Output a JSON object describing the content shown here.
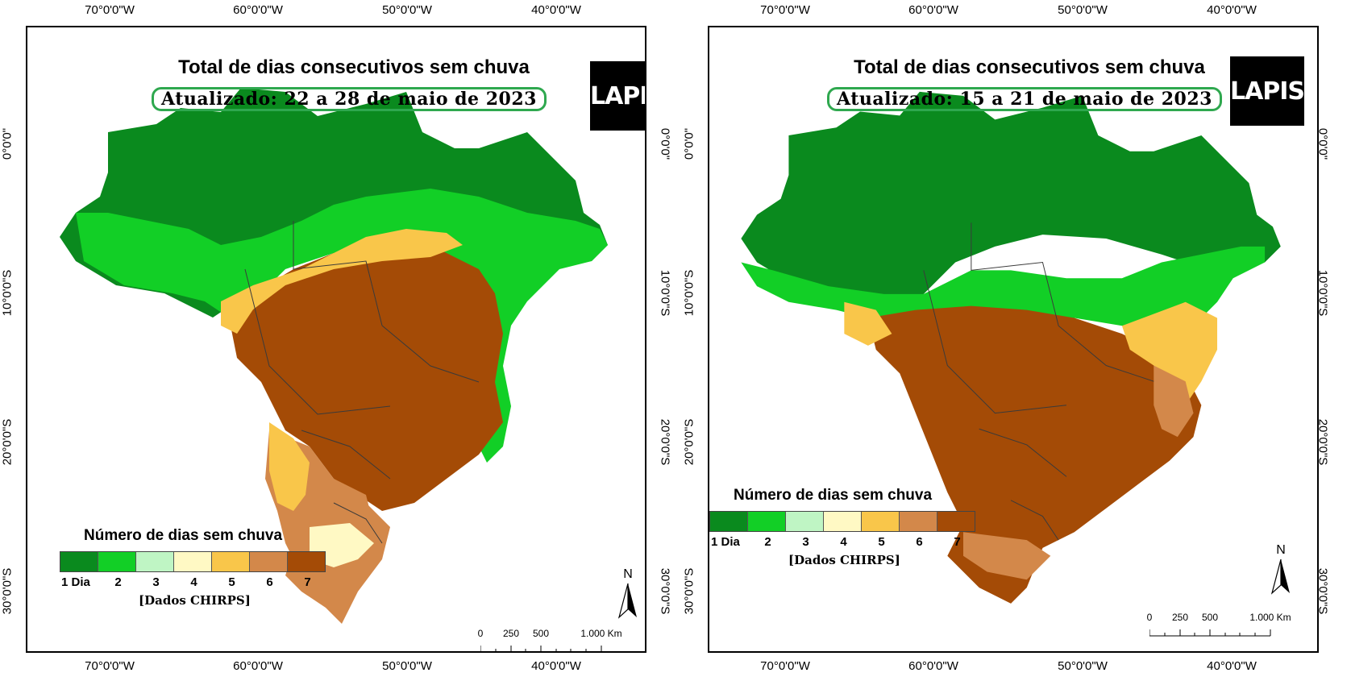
{
  "axes": {
    "longitude_labels": [
      "70°0'0\"W",
      "60°0'0\"W",
      "50°0'0\"W",
      "40°0'0\"W"
    ],
    "latitude_labels": [
      "0°0'0\"",
      "10°0'0\"S",
      "20°0'0\"S",
      "30°0'0\"S"
    ]
  },
  "legend": {
    "title": "Número de dias sem chuva",
    "labels": [
      "1 Dia",
      "2",
      "3",
      "4",
      "5",
      "6",
      "7"
    ],
    "colors": [
      "#0a8a1e",
      "#12cf26",
      "#bff5c4",
      "#fff9c4",
      "#f9c64a",
      "#d3884a",
      "#a44b06"
    ],
    "source": "[Dados CHIRPS]"
  },
  "north_arrow": {
    "label": "N"
  },
  "scale_bar": {
    "labels": [
      "0",
      "250",
      "500",
      "1.000 Km"
    ]
  },
  "logo": {
    "text": "LAPIS"
  },
  "panels": [
    {
      "title": "Total de dias consecutivos sem chuva",
      "subtitle": "Atualizado: 22 a 28 de maio de 2023"
    },
    {
      "title": "Total de dias consecutivos sem chuva",
      "subtitle": "Atualizado: 15 a 21 de maio de 2023"
    }
  ]
}
